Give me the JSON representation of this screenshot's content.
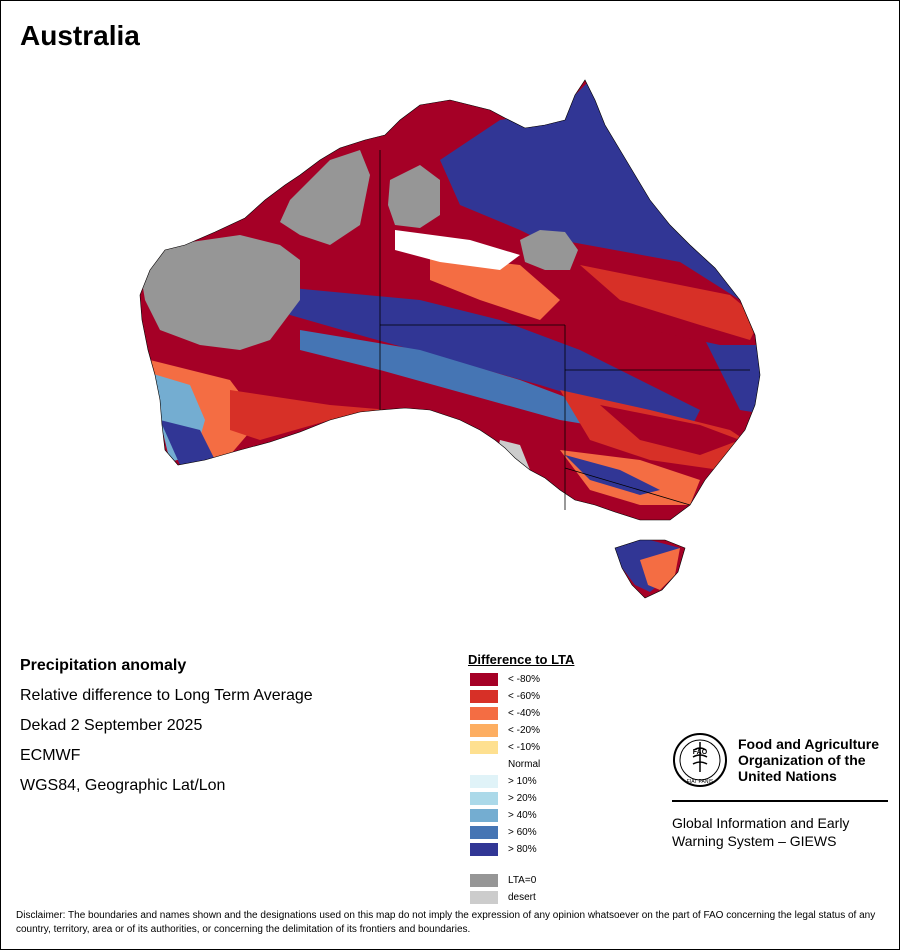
{
  "map": {
    "title": "Australia",
    "region": "Australia",
    "colors": {
      "lt_-80": "#a50026",
      "lt_-60": "#d73027",
      "lt_-40": "#f46d43",
      "lt_-20": "#fdae61",
      "lt_-10": "#fee090",
      "normal": "#ffffff",
      "gt_10": "#e0f3f8",
      "gt_20": "#abd9e9",
      "gt_40": "#74add1",
      "gt_60": "#4575b4",
      "gt_80": "#313695",
      "lta0": "#969696",
      "desert": "#cccccc"
    }
  },
  "info": {
    "heading": "Precipitation anomaly",
    "subtitle": "Relative difference to Long Term Average",
    "period": "Dekad 2 September 2025",
    "source": "ECMWF",
    "projection": "WGS84, Geographic Lat/Lon"
  },
  "legend": {
    "title": "Difference to LTA",
    "classes": [
      {
        "label": "< -80%",
        "color": "#a50026"
      },
      {
        "label": "< -60%",
        "color": "#d73027"
      },
      {
        "label": "< -40%",
        "color": "#f46d43"
      },
      {
        "label": "< -20%",
        "color": "#fdae61"
      },
      {
        "label": "< -10%",
        "color": "#fee090"
      },
      {
        "label": "Normal",
        "color": "#ffffff"
      },
      {
        "label": "> 10%",
        "color": "#e0f3f8"
      },
      {
        "label": "> 20%",
        "color": "#abd9e9"
      },
      {
        "label": "> 40%",
        "color": "#74add1"
      },
      {
        "label": "> 60%",
        "color": "#4575b4"
      },
      {
        "label": "> 80%",
        "color": "#313695"
      }
    ],
    "extra": [
      {
        "label": "LTA=0",
        "color": "#969696"
      },
      {
        "label": "desert",
        "color": "#cccccc"
      }
    ]
  },
  "logo": {
    "emblem_text": "FAO",
    "emblem_motto": "FIAT PANIS",
    "org_line1": "Food and Agriculture",
    "org_line2": "Organization of the",
    "org_line3": "United Nations",
    "system_line1": "Global Information and Early",
    "system_line2": "Warning System – GIEWS"
  },
  "disclaimer": "Disclaimer: The boundaries and names shown and the designations used on this map do not imply the expression of any opinion whatsoever on the part of FAO concerning the legal status of any country, territory, area or of its authorities, or concerning the delimitation of its frontiers and boundaries."
}
